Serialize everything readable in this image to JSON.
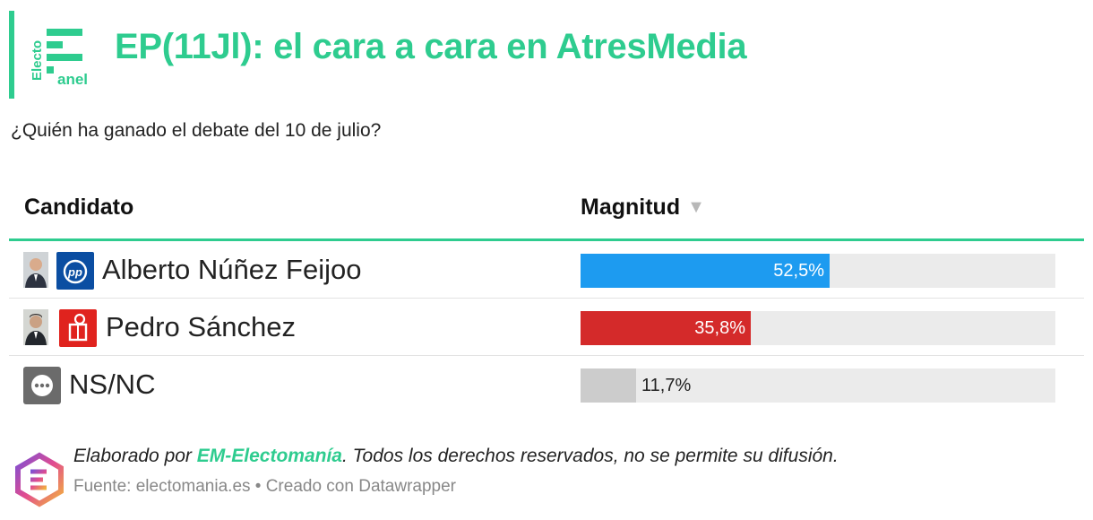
{
  "header": {
    "logo_text_vertical": "Electo",
    "logo_text_bottom": "anel",
    "title": "EP(11Jl): el cara a cara en AtresMedia",
    "subtitle": "¿Quién ha ganado el debate del 10 de julio?"
  },
  "table": {
    "columns": [
      "Candidato",
      "Magnitud"
    ],
    "sort_indicator": "▼"
  },
  "chart_data": {
    "type": "bar",
    "orientation": "horizontal",
    "title": "EP(11Jl): el cara a cara en AtresMedia",
    "subtitle": "¿Quién ha ganado el debate del 10 de julio?",
    "xlim": [
      0,
      100
    ],
    "categories": [
      "Alberto Núñez Feijoo",
      "Pedro Sánchez",
      "NS/NC"
    ],
    "values": [
      52.5,
      35.8,
      11.7
    ],
    "labels": [
      "52,5%",
      "35,8%",
      "11,7%"
    ],
    "colors": [
      "#1d9bf0",
      "#d42a2a",
      "#cccccc"
    ]
  },
  "rows": [
    {
      "name": "Alberto Núñez Feijoo",
      "label": "52,5%",
      "party_icon": "pp-logo-icon"
    },
    {
      "name": "Pedro Sánchez",
      "label": "35,8%",
      "party_icon": "psoe-logo-icon"
    },
    {
      "name": "NS/NC",
      "label": "11,7%",
      "party_icon": "more-dots-icon"
    }
  ],
  "footer": {
    "credit_prefix": "Elaborado por ",
    "credit_org": "EM-Electomanía",
    "credit_suffix": ". Todos los derechos reservados, no se permite su difusión.",
    "source": "Fuente: electomania.es • Creado con Datawrapper"
  },
  "colors": {
    "accent": "#2ecc8f",
    "track": "#ebebeb",
    "pp": "#1d9bf0",
    "psoe": "#d42a2a",
    "nsnc": "#cccccc"
  }
}
